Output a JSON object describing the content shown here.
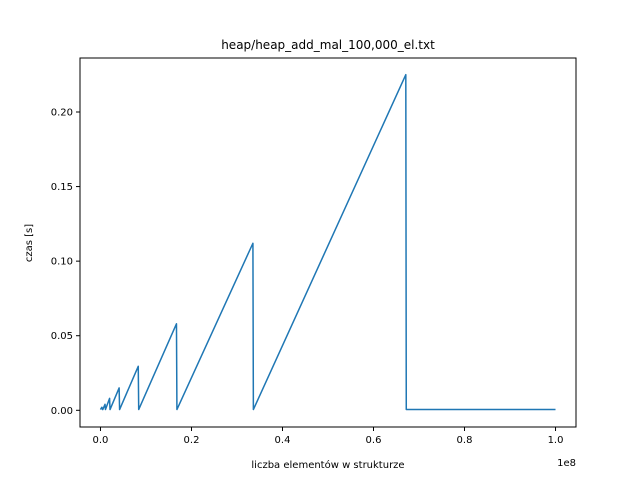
{
  "chart_data": {
    "type": "line",
    "title": "heap/heap_add_mal_100,000_el.txt",
    "xlabel": "liczba elementów w strukturze",
    "ylabel": "czas [s]",
    "x_offset_label": "1e8",
    "xlim": [
      -4500000,
      104500000
    ],
    "ylim": [
      -0.0112,
      0.2362
    ],
    "x_ticks": [
      0,
      20000000,
      40000000,
      60000000,
      80000000,
      100000000
    ],
    "x_tick_labels": [
      "0.0",
      "0.2",
      "0.4",
      "0.6",
      "0.8",
      "1.0"
    ],
    "y_ticks": [
      0,
      0.05,
      0.1,
      0.15,
      0.2
    ],
    "y_tick_labels": [
      "0.00",
      "0.05",
      "0.10",
      "0.15",
      "0.20"
    ],
    "grid": false,
    "series": [
      {
        "color": "#1f77b4",
        "points": [
          [
            0,
            0.0005
          ],
          [
            300000,
            0.002
          ],
          [
            500000,
            0.0005
          ],
          [
            1000000,
            0.004
          ],
          [
            1100000,
            0.0005
          ],
          [
            2000000,
            0.008
          ],
          [
            2100000,
            0.0005
          ],
          [
            4100000,
            0.015
          ],
          [
            4200000,
            0.0005
          ],
          [
            8300000,
            0.0295
          ],
          [
            8400000,
            0.0005
          ],
          [
            16700000,
            0.058
          ],
          [
            16800000,
            0.0005
          ],
          [
            33500000,
            0.112
          ],
          [
            33600000,
            0.0005
          ],
          [
            67100000,
            0.225
          ],
          [
            67200000,
            0.0005
          ],
          [
            100000000,
            0.0005
          ]
        ]
      }
    ]
  }
}
